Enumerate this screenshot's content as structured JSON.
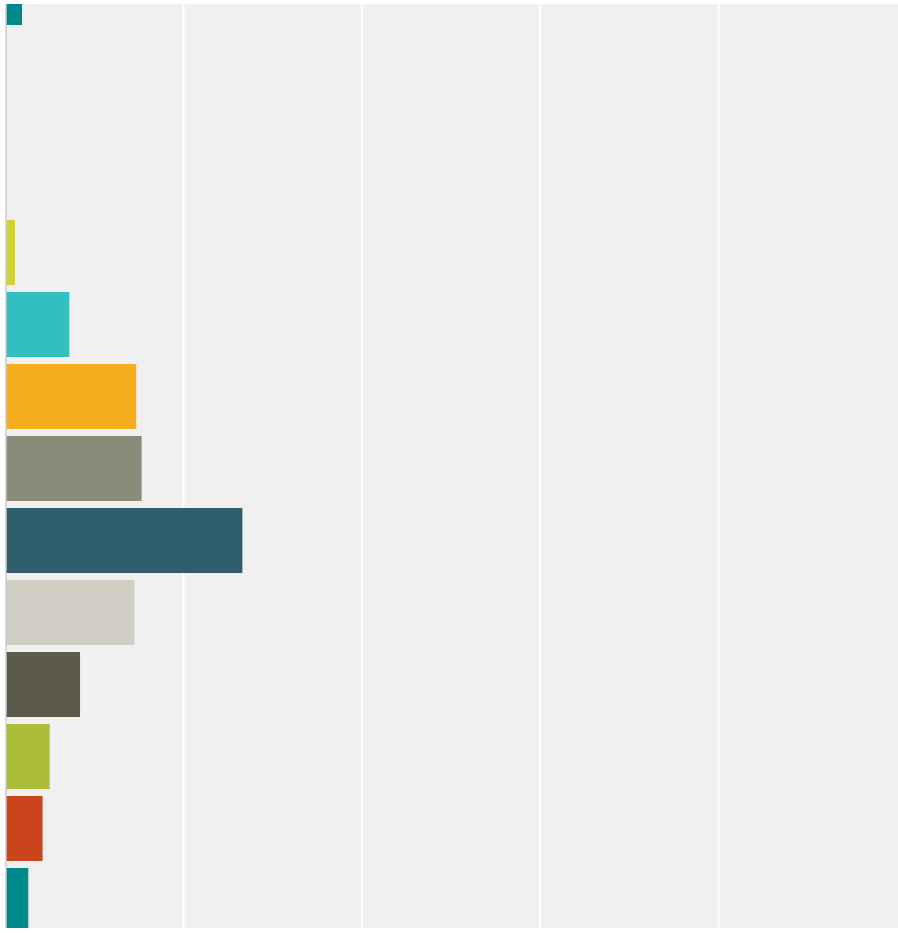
{
  "chart_data": {
    "type": "bar",
    "orientation": "horizontal",
    "title": "",
    "xlabel": "",
    "ylabel": "",
    "grid": true,
    "gridlines": 5,
    "xlim": [
      0,
      100
    ],
    "plot_background": "#f0f0f0",
    "grid_color": "#ffffff",
    "axis_color": "#cccccc",
    "bars": [
      {
        "row": 0,
        "value": 1.8,
        "color": "#00898a"
      },
      {
        "row": 3,
        "value": 1.0,
        "color": "#cfd232"
      },
      {
        "row": 4,
        "value": 7.1,
        "color": "#33bec0"
      },
      {
        "row": 5,
        "value": 14.6,
        "color": "#f7ae1e"
      },
      {
        "row": 6,
        "value": 15.2,
        "color": "#898a78"
      },
      {
        "row": 7,
        "value": 26.5,
        "color": "#2e5e6b"
      },
      {
        "row": 8,
        "value": 14.4,
        "color": "#d0cec2"
      },
      {
        "row": 9,
        "value": 8.3,
        "color": "#5c5a4b"
      },
      {
        "row": 10,
        "value": 4.9,
        "color": "#abbd39"
      },
      {
        "row": 11,
        "value": 4.1,
        "color": "#cb451c"
      },
      {
        "row": 12,
        "value": 2.5,
        "color": "#00898a"
      }
    ]
  }
}
